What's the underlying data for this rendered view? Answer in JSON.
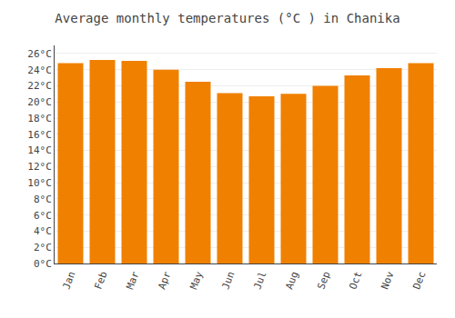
{
  "chart_data": {
    "type": "bar",
    "title": "Average monthly temperatures (°C ) in Chanika",
    "categories": [
      "Jan",
      "Feb",
      "Mar",
      "Apr",
      "May",
      "Jun",
      "Jul",
      "Aug",
      "Sep",
      "Oct",
      "Nov",
      "Dec"
    ],
    "values": [
      24.8,
      25.2,
      25.1,
      24.0,
      22.5,
      21.1,
      20.7,
      21.0,
      22.0,
      23.3,
      24.2,
      24.8
    ],
    "color": "#F08000",
    "ylim": [
      0,
      27
    ],
    "yticks": [
      {
        "value": 0,
        "label": "0°C"
      },
      {
        "value": 2,
        "label": "2°C"
      },
      {
        "value": 4,
        "label": "4°C"
      },
      {
        "value": 6,
        "label": "6°C"
      },
      {
        "value": 8,
        "label": "8°C"
      },
      {
        "value": 10,
        "label": "10°C"
      },
      {
        "value": 12,
        "label": "12°C"
      },
      {
        "value": 14,
        "label": "14°C"
      },
      {
        "value": 16,
        "label": "16°C"
      },
      {
        "value": 18,
        "label": "18°C"
      },
      {
        "value": 20,
        "label": "20°C"
      },
      {
        "value": 22,
        "label": "22°C"
      },
      {
        "value": 24,
        "label": "24°C"
      },
      {
        "value": 26,
        "label": "26°C"
      }
    ],
    "grid": true
  }
}
